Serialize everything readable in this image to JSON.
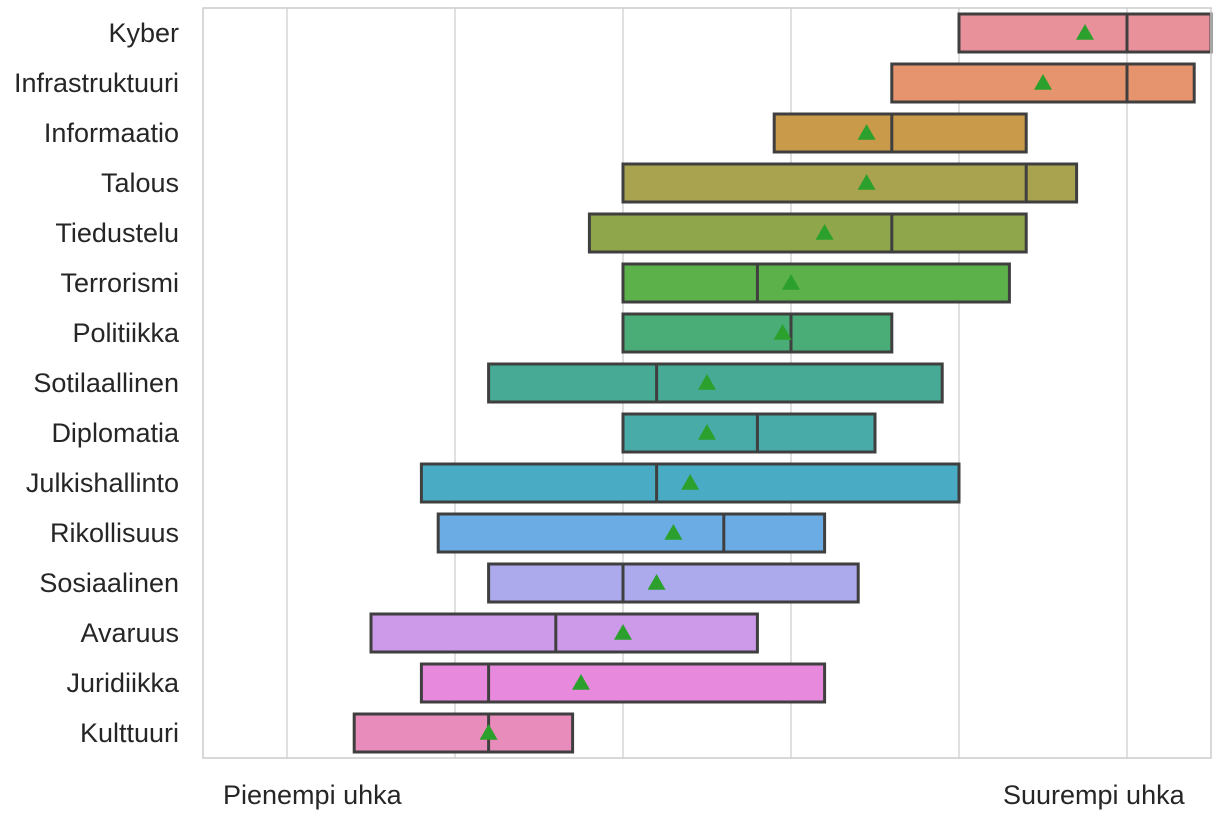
{
  "chart_data": {
    "type": "box",
    "orientation": "horizontal",
    "xlim": [
      0.5,
      6.5
    ],
    "grid": true,
    "x_end_labels": {
      "left": "Pienempi uhka",
      "right": "Suurempi uhka"
    },
    "categories": [
      "Kyber",
      "Infrastruktuuri",
      "Informaatio",
      "Talous",
      "Tiedustelu",
      "Terrorismi",
      "Politiikka",
      "Sotilaallinen",
      "Diplomatia",
      "Julkishallinto",
      "Rikollisuus",
      "Sosiaalinen",
      "Avaruus",
      "Juridiikka",
      "Kulttuuri"
    ],
    "boxes": [
      {
        "category": "Kyber",
        "q1": 5.0,
        "median": 6.0,
        "q3": 6.5,
        "mean": 5.75,
        "color": "#e8919b"
      },
      {
        "category": "Infrastruktuuri",
        "q1": 4.6,
        "median": 6.0,
        "q3": 6.4,
        "mean": 5.5,
        "color": "#e5946e"
      },
      {
        "category": "Informaatio",
        "q1": 3.9,
        "median": 4.6,
        "q3": 5.4,
        "mean": 4.45,
        "color": "#c89a49"
      },
      {
        "category": "Talous",
        "q1": 3.0,
        "median": 5.4,
        "q3": 5.7,
        "mean": 4.45,
        "color": "#a9a24f"
      },
      {
        "category": "Tiedustelu",
        "q1": 2.8,
        "median": 4.6,
        "q3": 5.4,
        "mean": 4.2,
        "color": "#8fa64a"
      },
      {
        "category": "Terrorismi",
        "q1": 3.0,
        "median": 3.8,
        "q3": 5.3,
        "mean": 4.0,
        "color": "#5db14b"
      },
      {
        "category": "Politiikka",
        "q1": 3.0,
        "median": 4.0,
        "q3": 4.6,
        "mean": 3.95,
        "color": "#4aad78"
      },
      {
        "category": "Sotilaallinen",
        "q1": 2.2,
        "median": 3.2,
        "q3": 4.9,
        "mean": 3.5,
        "color": "#46aa95"
      },
      {
        "category": "Diplomatia",
        "q1": 3.0,
        "median": 3.8,
        "q3": 4.5,
        "mean": 3.5,
        "color": "#48aba8"
      },
      {
        "category": "Julkishallinto",
        "q1": 1.8,
        "median": 3.2,
        "q3": 5.0,
        "mean": 3.4,
        "color": "#4aabc4"
      },
      {
        "category": "Rikollisuus",
        "q1": 1.9,
        "median": 3.6,
        "q3": 4.2,
        "mean": 3.3,
        "color": "#6cace4"
      },
      {
        "category": "Sosiaalinen",
        "q1": 2.2,
        "median": 3.0,
        "q3": 4.4,
        "mean": 3.2,
        "color": "#aca9ec"
      },
      {
        "category": "Avaruus",
        "q1": 1.5,
        "median": 2.6,
        "q3": 3.8,
        "mean": 3.0,
        "color": "#cd9aea"
      },
      {
        "category": "Juridiikka",
        "q1": 1.8,
        "median": 2.2,
        "q3": 4.2,
        "mean": 2.75,
        "color": "#e78ade"
      },
      {
        "category": "Kulttuuri",
        "q1": 1.4,
        "median": 2.2,
        "q3": 2.7,
        "mean": 2.2,
        "color": "#e78cbb"
      }
    ],
    "mean_marker_color": "#2ca02c"
  }
}
